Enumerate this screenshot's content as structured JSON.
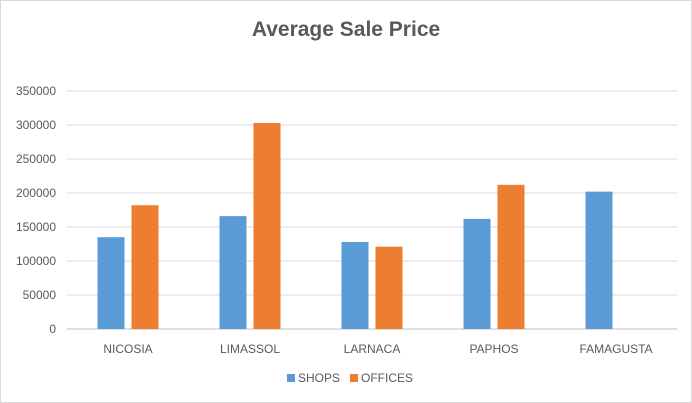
{
  "chart_data": {
    "type": "bar",
    "title": "Average Sale Price",
    "xlabel": "",
    "ylabel": "",
    "categories": [
      "NICOSIA",
      "LIMASSOL",
      "LARNACA",
      "PAPHOS",
      "FAMAGUSTA"
    ],
    "series": [
      {
        "name": "SHOPS",
        "color": "#5b9bd5",
        "values": [
          135000,
          166000,
          128000,
          162000,
          202000
        ]
      },
      {
        "name": "OFFICES",
        "color": "#ed7d31",
        "values": [
          182000,
          303000,
          121000,
          212000,
          null
        ]
      }
    ],
    "ylim": [
      0,
      350000
    ],
    "yticks": [
      0,
      50000,
      100000,
      150000,
      200000,
      250000,
      300000,
      350000
    ],
    "grid": true,
    "legend": "bottom"
  }
}
